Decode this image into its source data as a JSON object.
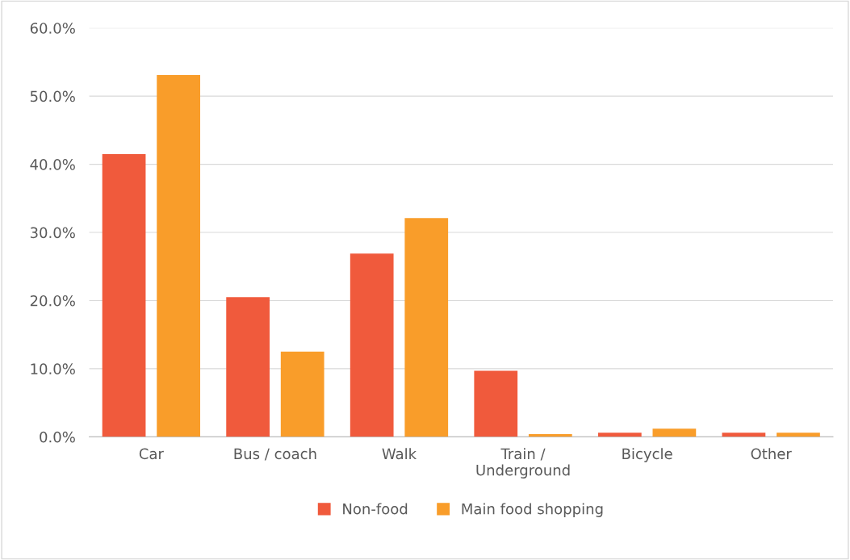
{
  "chart_data": {
    "type": "bar",
    "categories": [
      "Car",
      "Bus / coach",
      "Walk",
      "Train /\nUnderground",
      "Bicycle",
      "Other"
    ],
    "series": [
      {
        "name": "Non-food",
        "color": "#f05a3c",
        "values": [
          41.5,
          20.5,
          26.9,
          9.7,
          0.6,
          0.6
        ]
      },
      {
        "name": "Main food shopping",
        "color": "#f99d2a",
        "values": [
          53.1,
          12.5,
          32.1,
          0.4,
          1.2,
          0.6
        ]
      }
    ],
    "ylim": [
      0,
      60
    ],
    "yticks": [
      {
        "value": 0,
        "label": "0.0%"
      },
      {
        "value": 10,
        "label": "10.0%"
      },
      {
        "value": 20,
        "label": "20.0%"
      },
      {
        "value": 30,
        "label": "30.0%"
      },
      {
        "value": 40,
        "label": "40.0%"
      },
      {
        "value": 50,
        "label": "50.0%"
      },
      {
        "value": 60,
        "label": "60.0%"
      }
    ],
    "grid": "y",
    "legend": "bottom"
  }
}
